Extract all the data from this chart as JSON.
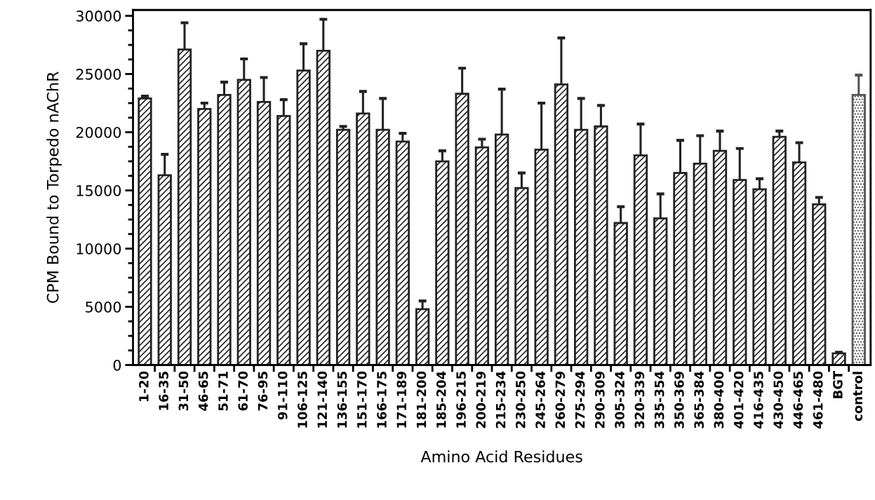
{
  "chart_data": {
    "type": "bar",
    "xlabel": "Amino Acid Residues",
    "ylabel": "CPM Bound to Torpedo nAChR",
    "categories": [
      "1-20",
      "16-35",
      "31-50",
      "46-65",
      "51-71",
      "61-70",
      "76-95",
      "91-110",
      "106-125",
      "121-140",
      "136-155",
      "151-170",
      "166-175",
      "171-189",
      "181-200",
      "185-204",
      "196-215",
      "200-219",
      "215-234",
      "230-250",
      "245-264",
      "260-279",
      "275-294",
      "290-309",
      "305-324",
      "320-339",
      "335-354",
      "350-369",
      "365-384",
      "380-400",
      "401-420",
      "416-435",
      "430-450",
      "446-465",
      "461-480",
      "BGT",
      "control"
    ],
    "values": [
      22900,
      16300,
      27100,
      22000,
      23200,
      24500,
      22600,
      21400,
      25300,
      27000,
      20200,
      21600,
      20200,
      19200,
      4800,
      17500,
      23300,
      18700,
      19800,
      15200,
      18500,
      24100,
      20200,
      20500,
      12200,
      18000,
      12600,
      16500,
      17300,
      18400,
      15900,
      15100,
      19600,
      17400,
      13800,
      1000,
      23200
    ],
    "errors": [
      [
        22900,
        23100
      ],
      [
        16300,
        18100
      ],
      [
        27100,
        29400
      ],
      [
        22000,
        22500
      ],
      [
        23200,
        24300
      ],
      [
        24500,
        26300
      ],
      [
        22600,
        24700
      ],
      [
        21400,
        22800
      ],
      [
        25300,
        27600
      ],
      [
        27000,
        29700
      ],
      [
        20200,
        20500
      ],
      [
        21600,
        23500
      ],
      [
        20200,
        22900
      ],
      [
        19200,
        19900
      ],
      [
        4800,
        5500
      ],
      [
        17500,
        18400
      ],
      [
        23300,
        25500
      ],
      [
        18700,
        19400
      ],
      [
        19800,
        23700
      ],
      [
        15200,
        16500
      ],
      [
        18500,
        22500
      ],
      [
        24100,
        28100
      ],
      [
        20200,
        22900
      ],
      [
        20500,
        22300
      ],
      [
        12200,
        13600
      ],
      [
        18000,
        20700
      ],
      [
        12600,
        14700
      ],
      [
        16500,
        19300
      ],
      [
        17300,
        19700
      ],
      [
        18400,
        20100
      ],
      [
        15900,
        18600
      ],
      [
        15100,
        16000
      ],
      [
        19600,
        20100
      ],
      [
        17400,
        19100
      ],
      [
        13800,
        14400
      ],
      [
        1000,
        1100
      ],
      [
        23200,
        24900
      ]
    ],
    "colors": [
      "#222222",
      "#222222",
      "#222222",
      "#222222",
      "#222222",
      "#222222",
      "#222222",
      "#222222",
      "#222222",
      "#222222",
      "#222222",
      "#222222",
      "#222222",
      "#222222",
      "#222222",
      "#222222",
      "#222222",
      "#222222",
      "#222222",
      "#222222",
      "#222222",
      "#222222",
      "#222222",
      "#222222",
      "#222222",
      "#222222",
      "#222222",
      "#222222",
      "#222222",
      "#222222",
      "#222222",
      "#222222",
      "#222222",
      "#222222",
      "#222222",
      "#222222",
      "#555555"
    ],
    "ylim": [
      0,
      30500
    ],
    "yticks": [
      0,
      5000,
      10000,
      15000,
      20000,
      25000,
      30000
    ],
    "grid": false
  }
}
